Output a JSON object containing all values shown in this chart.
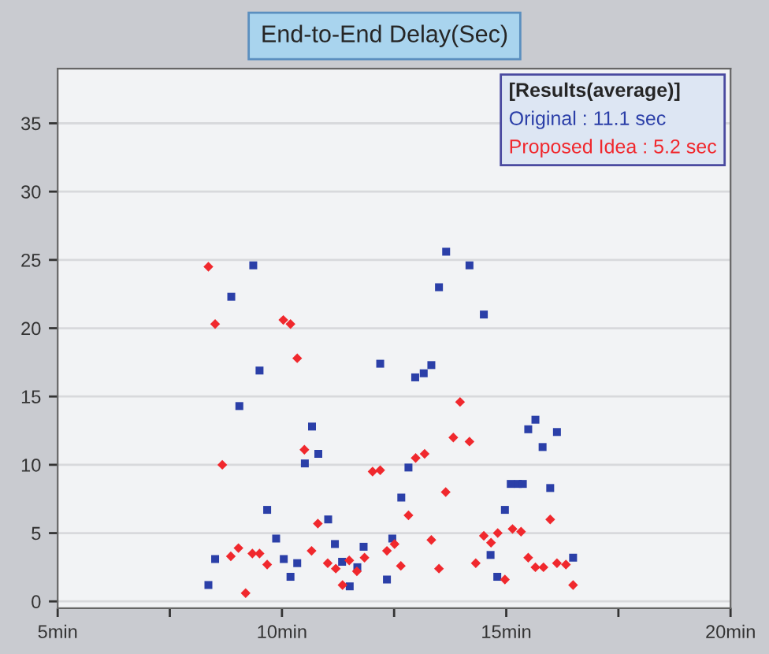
{
  "chart_data": {
    "type": "scatter",
    "title": "End-to-End Delay(Sec)",
    "legend_title": "[Results(average)]",
    "legend": "top right",
    "grid": "y",
    "xlim": [
      5,
      20
    ],
    "ylim": [
      -0.5,
      39
    ],
    "xticks": [
      {
        "value": 5,
        "label": "5min"
      },
      {
        "value": 7.5,
        "label": null
      },
      {
        "value": 10,
        "label": "10min"
      },
      {
        "value": 12.5,
        "label": null
      },
      {
        "value": 15,
        "label": "15min"
      },
      {
        "value": 17.5,
        "label": null
      },
      {
        "value": 20,
        "label": "20min"
      }
    ],
    "yticks": [
      0,
      5,
      10,
      15,
      20,
      25,
      30,
      35
    ],
    "series": [
      {
        "name": "Original : 11.1 sec",
        "color": "#2b3fa8",
        "marker": "square",
        "x": [
          9.36,
          8.87,
          9.5,
          9.05,
          10.67,
          10.81,
          10.51,
          9.67,
          11.03,
          9.87,
          8.51,
          11.18,
          10.04,
          10.34,
          11.34,
          11.82,
          11.68,
          8.36,
          10.19,
          11.51,
          12.34,
          12.19,
          12.46,
          12.97,
          13.16,
          13.33,
          12.82,
          12.66,
          15.49,
          15.65,
          16.13,
          15.81,
          15.1,
          15.26,
          15.37,
          15.98,
          14.97,
          14.65,
          14.8,
          16.49,
          13.66,
          14.18,
          13.5,
          14.5
        ],
        "values": [
          24.6,
          22.3,
          16.9,
          14.3,
          12.8,
          10.8,
          10.1,
          6.7,
          6.0,
          4.6,
          3.1,
          4.2,
          3.1,
          2.8,
          2.9,
          4.0,
          2.5,
          1.2,
          1.8,
          1.1,
          1.6,
          17.4,
          4.6,
          16.4,
          16.7,
          17.3,
          9.8,
          7.6,
          12.6,
          13.3,
          12.4,
          11.3,
          8.6,
          8.6,
          8.6,
          8.3,
          6.7,
          3.4,
          1.8,
          3.2,
          25.6,
          24.6,
          23.0,
          21.0
        ]
      },
      {
        "name": "Proposed Idea : 5.2 sec",
        "color": "#f0282d",
        "marker": "diamond",
        "x": [
          8.36,
          8.51,
          10.03,
          10.19,
          10.34,
          8.67,
          10.5,
          10.8,
          10.66,
          8.86,
          9.03,
          9.34,
          9.5,
          9.67,
          9.19,
          11.02,
          11.2,
          11.5,
          11.35,
          11.67,
          11.84,
          12.02,
          12.19,
          12.34,
          12.98,
          13.18,
          12.82,
          12.51,
          12.65,
          13.33,
          13.5,
          13.65,
          13.82,
          13.97,
          14.18,
          14.32,
          14.5,
          14.66,
          14.81,
          14.97,
          15.14,
          15.33,
          15.49,
          15.65,
          15.83,
          15.98,
          16.13,
          16.33,
          16.49
        ],
        "values": [
          24.5,
          20.3,
          20.6,
          20.3,
          17.8,
          10.0,
          11.1,
          5.7,
          3.7,
          3.3,
          3.9,
          3.5,
          3.5,
          2.7,
          0.6,
          2.8,
          2.4,
          3.0,
          1.2,
          2.2,
          3.2,
          9.5,
          9.6,
          3.7,
          10.5,
          10.8,
          6.3,
          4.2,
          2.6,
          4.5,
          2.4,
          8.0,
          12.0,
          14.6,
          11.7,
          2.8,
          4.8,
          4.3,
          5.0,
          1.6,
          5.3,
          5.1,
          3.2,
          2.5,
          2.5,
          6.0,
          2.8,
          2.7,
          1.2
        ]
      }
    ]
  }
}
